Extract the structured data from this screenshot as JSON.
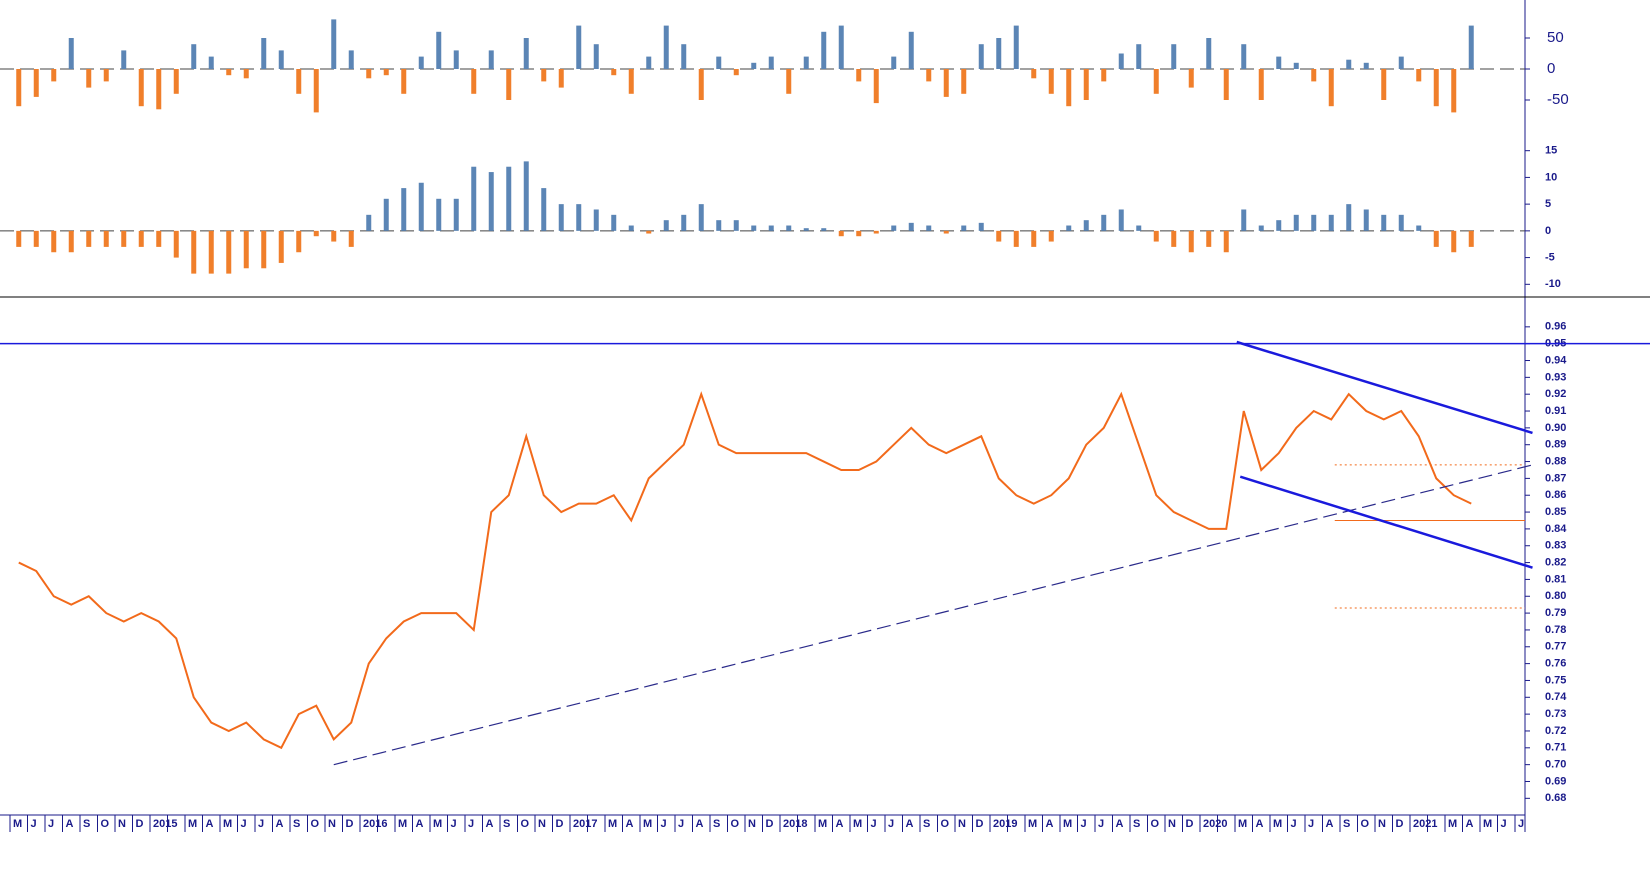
{
  "chart_data": [
    {
      "type": "bar",
      "ylim": [
        -100,
        100
      ],
      "yticks": [
        50,
        0,
        -50
      ],
      "zero_line": true,
      "positive_color": "#5b85b5",
      "negative_color": "#f07f2b",
      "values": [
        -60,
        -45,
        -20,
        50,
        -30,
        -20,
        30,
        -60,
        -65,
        -40,
        40,
        20,
        -10,
        -15,
        50,
        30,
        -40,
        -70,
        80,
        30,
        -15,
        -10,
        -40,
        20,
        60,
        30,
        -40,
        30,
        -50,
        50,
        -20,
        -30,
        70,
        40,
        -10,
        -40,
        20,
        70,
        40,
        -50,
        20,
        -10,
        10,
        20,
        -40,
        20,
        60,
        70,
        -20,
        -55,
        20,
        60,
        -20,
        -45,
        -40,
        40,
        50,
        70,
        -15,
        -40,
        -60,
        -50,
        -20,
        25,
        40,
        -40,
        40,
        -30,
        50,
        -50,
        40,
        -50,
        20,
        10,
        -20,
        -60,
        15,
        10,
        -50,
        20,
        -20,
        -60,
        -70,
        70,
        null,
        null,
        null
      ]
    },
    {
      "type": "bar",
      "ylim": [
        -12,
        17
      ],
      "yticks": [
        15,
        10,
        5,
        0,
        -5,
        -10
      ],
      "zero_line": true,
      "positive_color": "#5b85b5",
      "negative_color": "#f07f2b",
      "values": [
        -3,
        -3,
        -4,
        -4,
        -3,
        -3,
        -3,
        -3,
        -3,
        -5,
        -8,
        -8,
        -8,
        -7,
        -7,
        -6,
        -4,
        -1,
        -2,
        -3,
        3,
        6,
        8,
        9,
        6,
        6,
        12,
        11,
        12,
        13,
        8,
        5,
        5,
        4,
        3,
        1,
        -0.5,
        2,
        3,
        5,
        2,
        2,
        1,
        1,
        1,
        0.5,
        0.5,
        -1,
        -1,
        -0.5,
        1,
        1.5,
        1,
        -0.5,
        1,
        1.5,
        -2,
        -3,
        -3,
        -2,
        1,
        2,
        3,
        4,
        1,
        -2,
        -3,
        -4,
        -3,
        -4,
        4,
        1,
        2,
        3,
        3,
        3,
        5,
        4,
        3,
        3,
        1,
        -3,
        -4,
        -3,
        null,
        null,
        null
      ]
    },
    {
      "type": "line",
      "color": "#f26a1b",
      "categories": [
        "M",
        "J",
        "J",
        "A",
        "S",
        "O",
        "N",
        "D",
        "2015",
        null,
        "M",
        "A",
        "M",
        "J",
        "J",
        "A",
        "S",
        "O",
        "N",
        "D",
        "2016",
        null,
        "M",
        "A",
        "M",
        "J",
        "J",
        "A",
        "S",
        "O",
        "N",
        "D",
        "2017",
        null,
        "M",
        "A",
        "M",
        "J",
        "J",
        "A",
        "S",
        "O",
        "N",
        "D",
        "2018",
        null,
        "M",
        "A",
        "M",
        "J",
        "J",
        "A",
        "S",
        "O",
        "N",
        "D",
        "2019",
        null,
        "M",
        "A",
        "M",
        "J",
        "J",
        "A",
        "S",
        "O",
        "N",
        "D",
        "2020",
        null,
        "M",
        "A",
        "M",
        "J",
        "J",
        "A",
        "S",
        "O",
        "N",
        "D",
        "2021",
        null,
        "M",
        "A",
        "M",
        "J",
        "J"
      ],
      "values": [
        0.82,
        0.815,
        0.8,
        0.795,
        0.8,
        0.79,
        0.785,
        0.79,
        0.785,
        0.775,
        0.74,
        0.725,
        0.72,
        0.725,
        0.715,
        0.71,
        0.73,
        0.735,
        0.715,
        0.725,
        0.76,
        0.775,
        0.785,
        0.79,
        0.79,
        0.79,
        0.78,
        0.85,
        0.86,
        0.895,
        0.86,
        0.85,
        0.855,
        0.855,
        0.86,
        0.845,
        0.87,
        0.88,
        0.89,
        0.92,
        0.89,
        0.885,
        0.885,
        0.885,
        0.885,
        0.885,
        0.88,
        0.875,
        0.875,
        0.88,
        0.89,
        0.9,
        0.89,
        0.885,
        0.89,
        0.895,
        0.87,
        0.86,
        0.855,
        0.86,
        0.87,
        0.89,
        0.9,
        0.92,
        0.89,
        0.86,
        0.85,
        0.845,
        0.84,
        0.84,
        0.91,
        0.875,
        0.885,
        0.9,
        0.91,
        0.905,
        0.92,
        0.91,
        0.905,
        0.91,
        0.895,
        0.87,
        0.86,
        0.855,
        null,
        null,
        null
      ],
      "ylim": [
        0.66,
        0.97
      ],
      "yticks": [
        {
          "value": 0.68,
          "label": "0.68"
        },
        {
          "value": 0.69,
          "label": "0.69"
        },
        {
          "value": 0.7,
          "label": "0.70"
        },
        {
          "value": 0.71,
          "label": "0.71"
        },
        {
          "value": 0.72,
          "label": "0.72"
        },
        {
          "value": 0.73,
          "label": "0.73"
        },
        {
          "value": 0.74,
          "label": "0.74"
        },
        {
          "value": 0.75,
          "label": "0.75"
        },
        {
          "value": 0.76,
          "label": "0.76"
        },
        {
          "value": 0.77,
          "label": "0.77"
        },
        {
          "value": 0.78,
          "label": "0.78"
        },
        {
          "value": 0.79,
          "label": "0.79"
        },
        {
          "value": 0.8,
          "label": "0.80"
        },
        {
          "value": 0.81,
          "label": "0.81"
        },
        {
          "value": 0.82,
          "label": "0.82"
        },
        {
          "value": 0.83,
          "label": "0.83"
        },
        {
          "value": 0.84,
          "label": "0.84"
        },
        {
          "value": 0.85,
          "label": "0.85"
        },
        {
          "value": 0.86,
          "label": "0.86"
        },
        {
          "value": 0.87,
          "label": "0.87"
        },
        {
          "value": 0.88,
          "label": "0.88"
        },
        {
          "value": 0.89,
          "label": "0.89"
        },
        {
          "value": 0.9,
          "label": "0.90"
        },
        {
          "value": 0.91,
          "label": "0.91"
        },
        {
          "value": 0.92,
          "label": "0.92"
        },
        {
          "value": 0.93,
          "label": "0.93"
        },
        {
          "value": 0.94,
          "label": "0.94"
        },
        {
          "value": 0.95,
          "label": "0.95"
        },
        {
          "value": 0.96,
          "label": "0.96"
        }
      ],
      "hlines": [
        {
          "value": 0.95,
          "color": "#1a1adc",
          "style": "solid"
        },
        {
          "value": 0.878,
          "color": "#f26a1b",
          "style": "dotted",
          "start": 75.7
        },
        {
          "value": 0.845,
          "color": "#f26a1b",
          "style": "solid",
          "start": 75.7
        },
        {
          "value": 0.793,
          "color": "#f26a1b",
          "style": "dotted",
          "start": 75.7
        }
      ],
      "trendlines": [
        {
          "start": [
            18.5,
            0.7
          ],
          "end": [
            87,
            0.878
          ],
          "color": "#2a2a8a",
          "style": "dashed"
        },
        {
          "start": [
            70.1,
            0.951
          ],
          "end": [
            87,
            0.897
          ],
          "color": "#1a1adc",
          "style": "solid"
        },
        {
          "start": [
            70.3,
            0.871
          ],
          "end": [
            87,
            0.817
          ],
          "color": "#1a1adc",
          "style": "solid"
        }
      ]
    }
  ]
}
